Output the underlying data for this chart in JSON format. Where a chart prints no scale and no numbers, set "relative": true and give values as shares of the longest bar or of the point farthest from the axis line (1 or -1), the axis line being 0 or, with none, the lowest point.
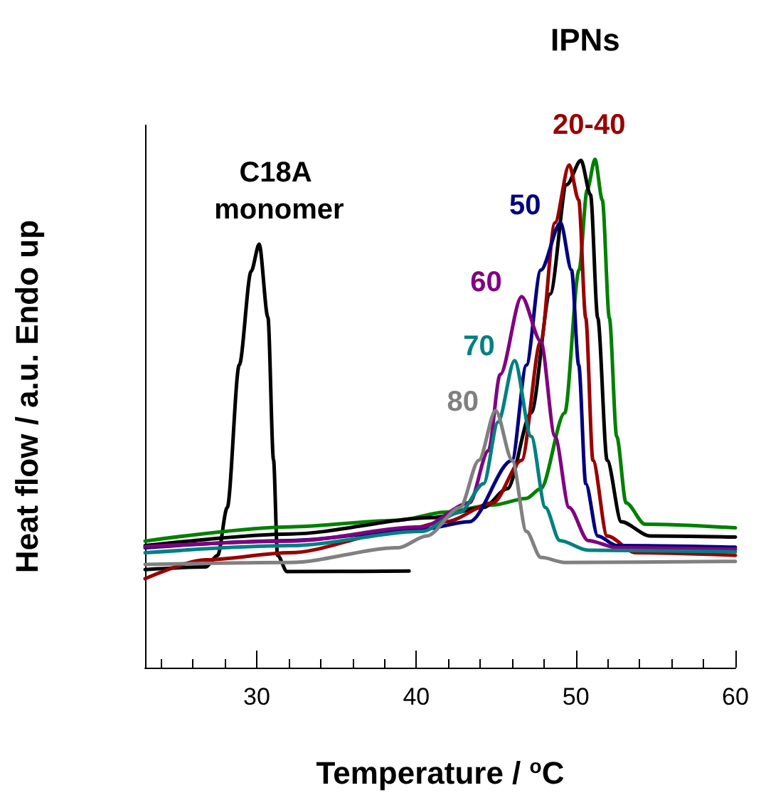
{
  "chart_data": {
    "type": "line",
    "title": "IPNs",
    "xlabel": "Temperature / $^{o}$C",
    "ylabel": "Heat flow / a.u. Endo up",
    "relative": true,
    "marker": "none",
    "xlim": [
      23,
      60
    ],
    "xticks": [
      {
        "value": 24,
        "label": null
      },
      {
        "value": 26,
        "label": null
      },
      {
        "value": 28,
        "label": null
      },
      30,
      {
        "value": 32,
        "label": null
      },
      {
        "value": 34,
        "label": null
      },
      {
        "value": 36,
        "label": null
      },
      {
        "value": 38,
        "label": null
      },
      40,
      {
        "value": 42,
        "label": null
      },
      {
        "value": 44,
        "label": null
      },
      {
        "value": 46,
        "label": null
      },
      {
        "value": 48,
        "label": null
      },
      50,
      {
        "value": 52,
        "label": null
      },
      {
        "value": 54,
        "label": null
      },
      {
        "value": 56,
        "label": null
      },
      {
        "value": 58,
        "label": null
      },
      60
    ],
    "series": [
      {
        "name": "C18A monomer",
        "color": "#000000",
        "x": [
          23,
          26.8,
          27.55,
          28.15,
          28.9,
          29.65,
          30.15,
          30.7,
          31.05,
          31.3,
          31.9,
          39.55
        ],
        "values": [
          0.193,
          0.198,
          0.221,
          0.315,
          0.595,
          0.78,
          0.833,
          0.689,
          0.409,
          0.221,
          0.189,
          0.19
        ]
      },
      {
        "color": "#008000",
        "x": [
          23,
          32.1,
          38.87,
          41.84,
          44.8,
          46.9,
          47.8,
          49.3,
          50.2,
          50.71,
          51.2,
          51.66,
          52.1,
          52.56,
          53.15,
          54.34,
          60
        ],
        "values": [
          0.249,
          0.277,
          0.29,
          0.306,
          0.32,
          0.333,
          0.352,
          0.501,
          0.782,
          0.94,
          1.0,
          0.92,
          0.688,
          0.455,
          0.324,
          0.282,
          0.275
        ]
      },
      {
        "color": "#000000",
        "x": [
          23,
          32.1,
          41,
          44.2,
          45.71,
          47.2,
          48.39,
          49.43,
          50.32,
          50.92,
          51.37,
          51.96,
          52.85,
          54.64,
          60
        ],
        "values": [
          0.24,
          0.263,
          0.295,
          0.315,
          0.352,
          0.501,
          0.735,
          0.95,
          0.998,
          0.93,
          0.688,
          0.408,
          0.287,
          0.259,
          0.257
        ]
      },
      {
        "name": "20-40",
        "color": "#990000",
        "x": [
          23,
          26.8,
          32.1,
          38.87,
          41.84,
          44.8,
          46.6,
          47.8,
          48.69,
          49.58,
          50.18,
          50.62,
          51.07,
          51.96,
          53.75,
          60
        ],
        "values": [
          0.175,
          0.212,
          0.226,
          0.268,
          0.287,
          0.324,
          0.408,
          0.642,
          0.875,
          0.989,
          0.92,
          0.688,
          0.408,
          0.259,
          0.226,
          0.221
        ]
      },
      {
        "name": "50",
        "color": "#000080",
        "x": [
          23,
          32.1,
          40.35,
          43.33,
          46.0,
          46.9,
          47.8,
          49.04,
          49.73,
          50.18,
          50.62,
          51.37,
          52.56,
          60
        ],
        "values": [
          0.236,
          0.25,
          0.272,
          0.287,
          0.408,
          0.595,
          0.782,
          0.875,
          0.782,
          0.595,
          0.362,
          0.259,
          0.24,
          0.237
        ]
      },
      {
        "name": "60",
        "color": "#800080",
        "x": [
          23,
          32.1,
          40.35,
          43.33,
          44.52,
          45.26,
          46.6,
          47.8,
          48.69,
          49.58,
          50.77,
          52.56,
          60
        ],
        "values": [
          0.238,
          0.249,
          0.277,
          0.324,
          0.427,
          0.577,
          0.73,
          0.642,
          0.455,
          0.315,
          0.25,
          0.236,
          0.233
        ]
      },
      {
        "name": "70",
        "color": "#008080",
        "x": [
          23,
          32.1,
          40.35,
          42.74,
          44.22,
          45.12,
          46.16,
          47.2,
          48.09,
          48.99,
          50.77,
          60
        ],
        "values": [
          0.226,
          0.24,
          0.268,
          0.306,
          0.362,
          0.483,
          0.604,
          0.455,
          0.315,
          0.25,
          0.231,
          0.228
        ]
      },
      {
        "name": "80",
        "color": "#808080",
        "x": [
          23,
          32.1,
          38.87,
          40.65,
          42.74,
          43.92,
          44.97,
          46.01,
          46.9,
          47.8,
          49.3,
          60
        ],
        "values": [
          0.203,
          0.207,
          0.236,
          0.259,
          0.315,
          0.408,
          0.506,
          0.408,
          0.268,
          0.217,
          0.207,
          0.209
        ]
      }
    ]
  }
}
